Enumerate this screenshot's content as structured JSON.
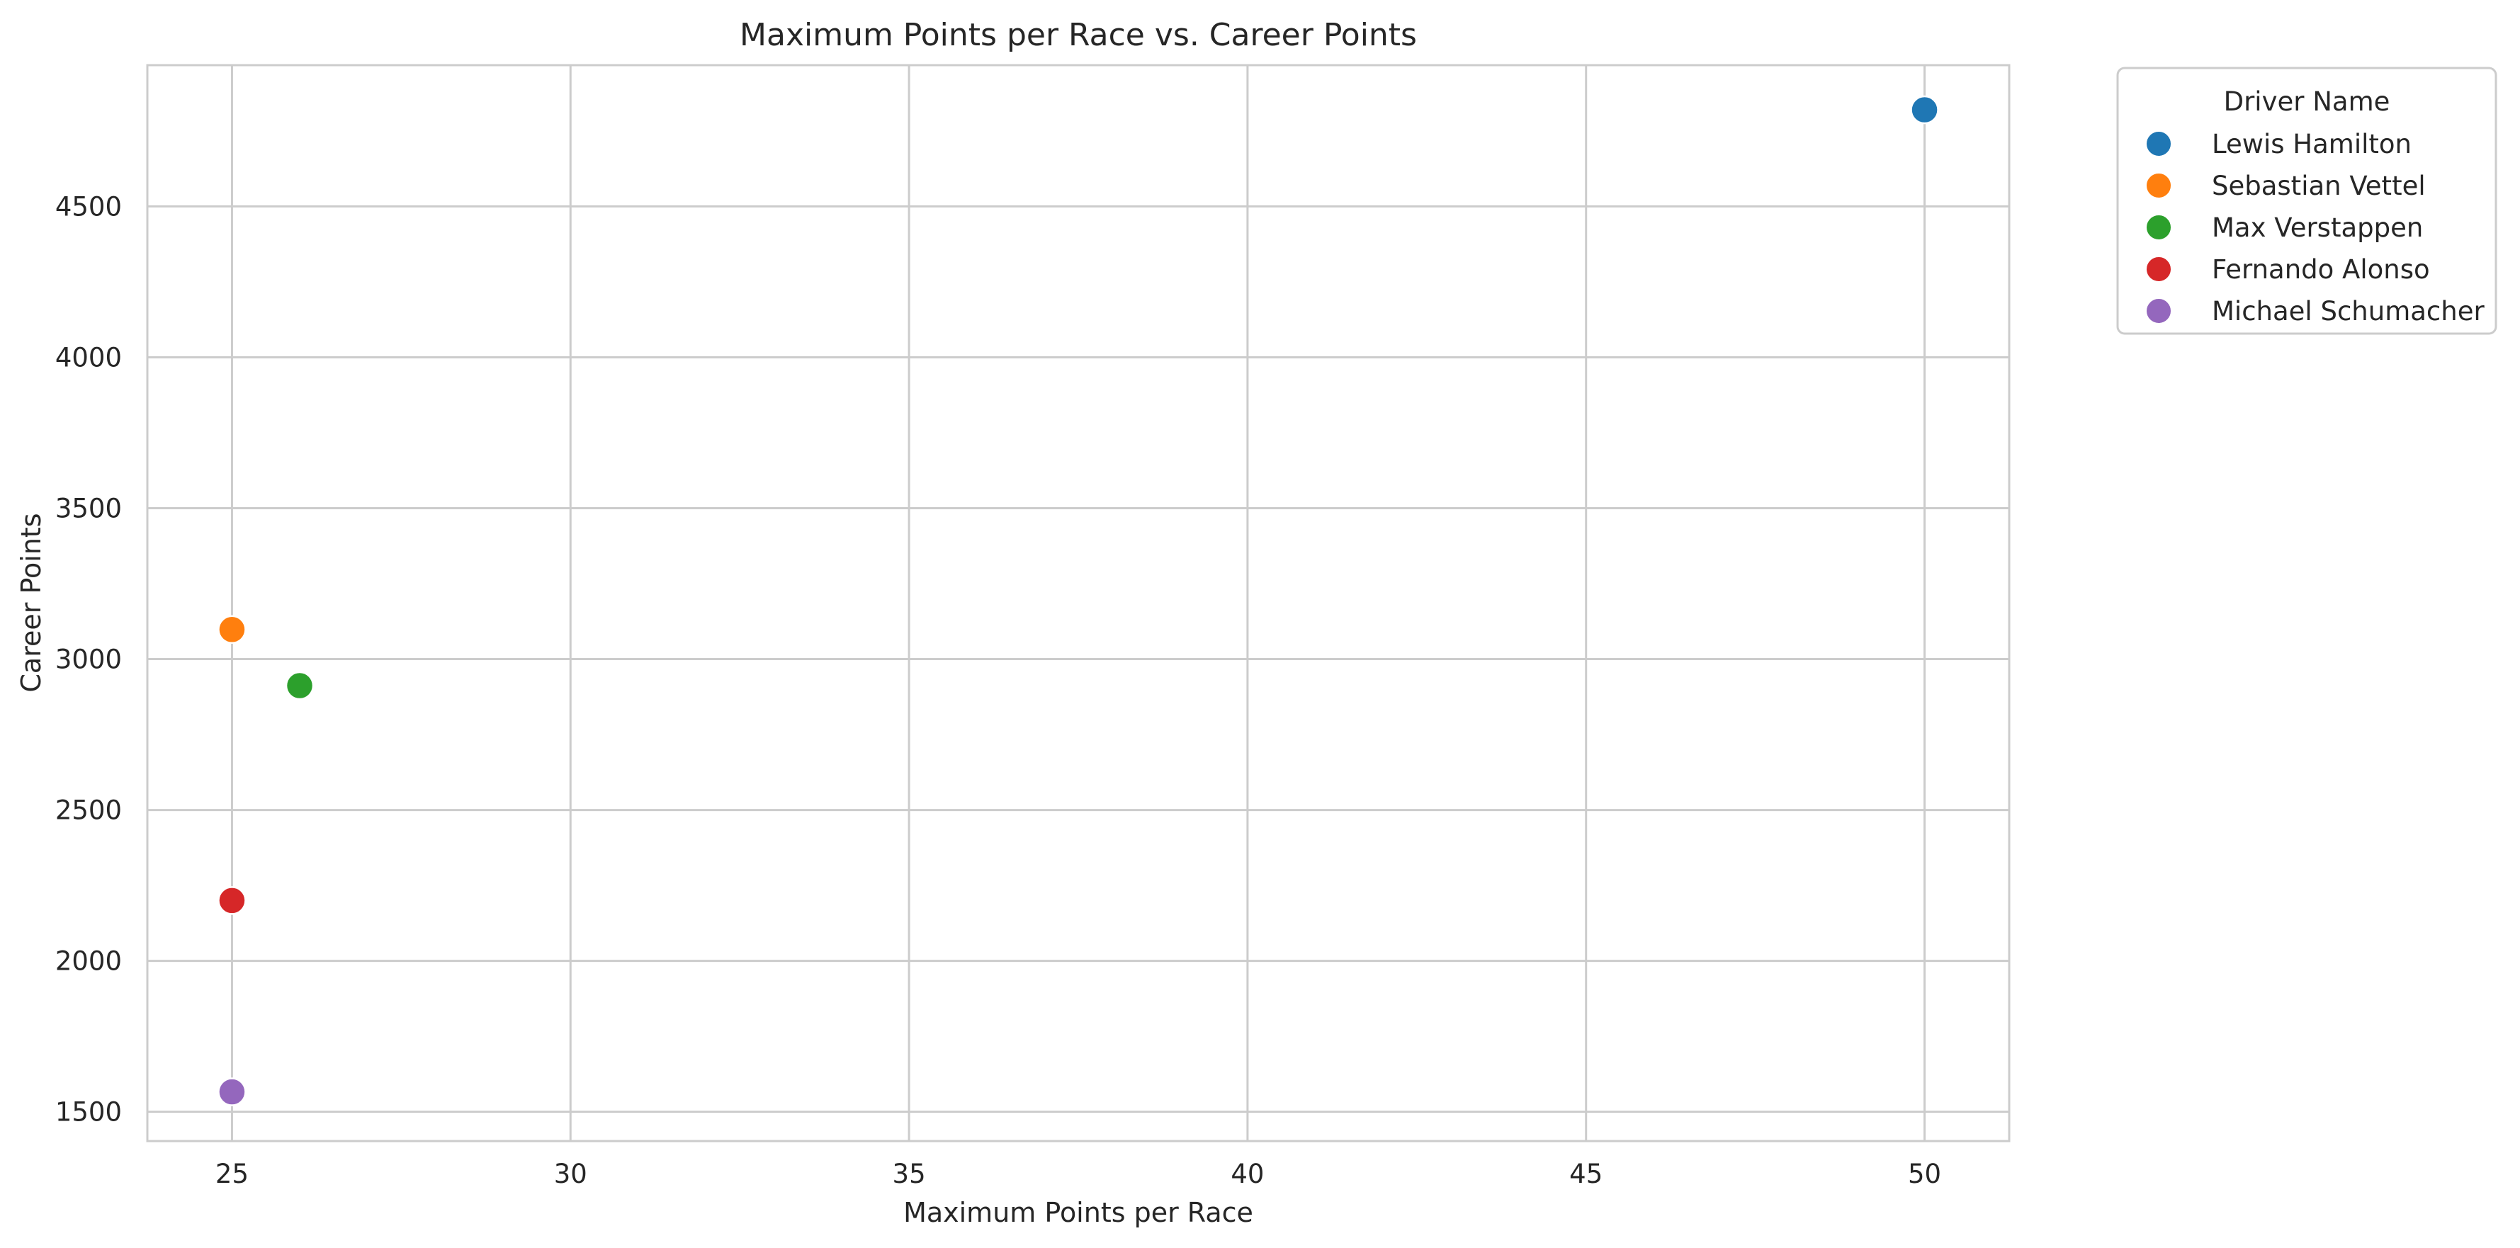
{
  "chart_data": {
    "type": "scatter",
    "title": "Maximum Points per Race vs. Career Points",
    "xlabel": "Maximum Points per Race",
    "ylabel": "Career Points",
    "xlim": [
      23.75,
      51.25
    ],
    "ylim": [
      1403,
      4968
    ],
    "xticks": [
      25,
      30,
      35,
      40,
      45,
      50
    ],
    "yticks": [
      1500,
      2000,
      2500,
      3000,
      3500,
      4000,
      4500
    ],
    "grid": true,
    "legend": {
      "title": "Driver Name",
      "placement": "outside-top-right"
    },
    "series": [
      {
        "name": "Lewis Hamilton",
        "color": "#1f77b4",
        "points": [
          {
            "x": 50,
            "y": 4820
          }
        ]
      },
      {
        "name": "Sebastian Vettel",
        "color": "#ff7f0e",
        "points": [
          {
            "x": 25,
            "y": 3098
          }
        ]
      },
      {
        "name": "Max Verstappen",
        "color": "#2ca02c",
        "points": [
          {
            "x": 26,
            "y": 2912
          }
        ]
      },
      {
        "name": "Fernando Alonso",
        "color": "#d62728",
        "points": [
          {
            "x": 25,
            "y": 2200
          }
        ]
      },
      {
        "name": "Michael Schumacher",
        "color": "#9467bd",
        "points": [
          {
            "x": 25,
            "y": 1566
          }
        ]
      }
    ]
  }
}
